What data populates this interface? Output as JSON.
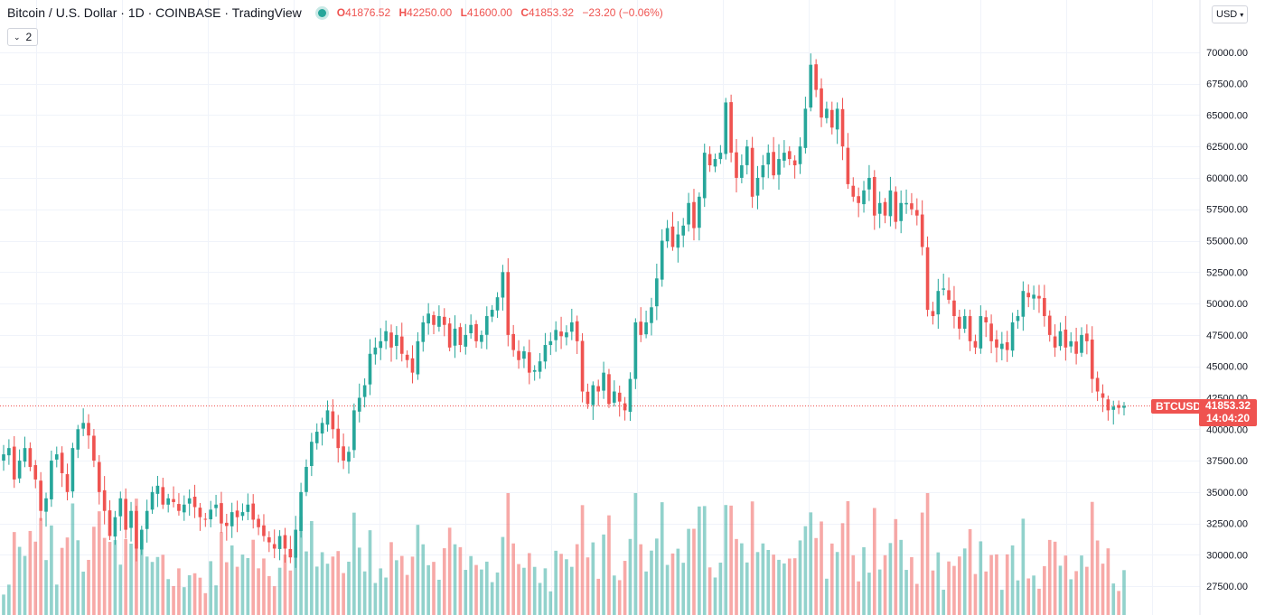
{
  "legend": {
    "title": "Bitcoin / U.S. Dollar · 1D · COINBASE · TradingView",
    "open_label": "O",
    "open": "41876.52",
    "high_label": "H",
    "high": "42250.00",
    "low_label": "L",
    "low": "41600.00",
    "close_label": "C",
    "close": "41853.32",
    "change": "−23.20 (−0.06%)",
    "collapse_count": "2"
  },
  "currency": "USD",
  "price_tag": {
    "symbol": "BTCUSD",
    "price": "41853.32",
    "countdown": "14:04:20"
  },
  "colors": {
    "up": "#26a69a",
    "down": "#ef5350",
    "grid": "#f0f3fa",
    "price_line": "#ef5350"
  },
  "chart_data": {
    "type": "candlestick",
    "symbol": "BTCUSD",
    "exchange": "COINBASE",
    "interval": "1D",
    "ylim": [
      25000,
      72500
    ],
    "y_ticks": [
      "70000.00",
      "67500.00",
      "65000.00",
      "62500.00",
      "60000.00",
      "57500.00",
      "55000.00",
      "52500.00",
      "50000.00",
      "47500.00",
      "45000.00",
      "42500.00",
      "40000.00",
      "37500.00",
      "35000.00",
      "32500.00",
      "30000.00",
      "27500.00"
    ],
    "y_tick_values": [
      70000,
      67500,
      65000,
      62500,
      60000,
      57500,
      55000,
      52500,
      50000,
      47500,
      45000,
      42500,
      40000,
      37500,
      35000,
      32500,
      30000,
      27500
    ],
    "last_price": 41853.32,
    "grid": true,
    "volume_scale_max": 100,
    "closes": [
      38000,
      38500,
      36000,
      37500,
      38500,
      37000,
      36000,
      33500,
      34500,
      37500,
      38000,
      36500,
      35000,
      38500,
      40000,
      40500,
      39500,
      37500,
      35000,
      33500,
      31500,
      33000,
      34500,
      32000,
      33500,
      30500,
      32000,
      33500,
      35000,
      35500,
      34000,
      34500,
      34200,
      33500,
      34000,
      34500,
      33800,
      33000,
      32800,
      33600,
      34000,
      32500,
      32300,
      33400,
      33000,
      33400,
      34000,
      32800,
      32200,
      31500,
      31000,
      30500,
      31500,
      30500,
      29800,
      32000,
      35000,
      37000,
      39000,
      39800,
      40500,
      41500,
      40000,
      38500,
      37500,
      38200,
      41500,
      42500,
      43500,
      46000,
      46500,
      47000,
      47800,
      46500,
      47500,
      46000,
      45500,
      44500,
      47000,
      48500,
      49200,
      48300,
      49000,
      48300,
      46500,
      48000,
      46700,
      47500,
      48300,
      47000,
      47500,
      49000,
      49500,
      50500,
      52500,
      47500,
      46300,
      45500,
      46200,
      44500,
      44700,
      45400,
      46700,
      47000,
      47900,
      47400,
      47700,
      48500,
      47000,
      43000,
      42000,
      43500,
      43000,
      44500,
      42000,
      43000,
      42200,
      41500,
      44000,
      48500,
      47500,
      48500,
      49700,
      52000,
      55000,
      56000,
      54500,
      55500,
      56200,
      58000,
      56000,
      58500,
      62000,
      61000,
      61500,
      62000,
      66000,
      62000,
      60000,
      61000,
      62500,
      58500,
      60000,
      61000,
      62000,
      60200,
      61500,
      62000,
      61500,
      61000,
      62500,
      65500,
      69000,
      67000,
      64800,
      65500,
      64000,
      65500,
      62500,
      59500,
      58500,
      58000,
      59000,
      60000,
      57000,
      58000,
      57000,
      59000,
      56500,
      58000,
      58000,
      57500,
      57000,
      54500,
      49500,
      49000,
      51000,
      51200,
      50300,
      49000,
      48000,
      49000,
      47000,
      46500,
      49000,
      48500,
      47000,
      46500,
      46800,
      46300,
      48500,
      49000,
      51000,
      50500,
      50700,
      50400,
      49000,
      47500,
      46500,
      47800,
      46500,
      47000,
      46000,
      47500,
      47000,
      44000,
      43000,
      42500,
      41500,
      41800,
      41700,
      41853
    ]
  }
}
